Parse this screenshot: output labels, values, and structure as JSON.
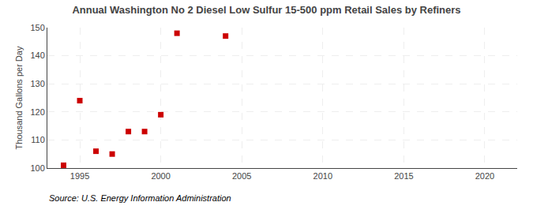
{
  "chart_data": {
    "type": "scatter",
    "title": "Annual Washington No 2 Diesel Low Sulfur 15-500 ppm Retail Sales by Refiners",
    "ylabel": "Thousand Gallons per Day",
    "annotations": [
      "Source: U.S. Energy Information Administration"
    ],
    "x": [
      1994,
      1995,
      1996,
      1997,
      1998,
      1999,
      2000,
      2001,
      2004
    ],
    "values": [
      101,
      124,
      106,
      105,
      113,
      113,
      119,
      148,
      147
    ],
    "color": "#cc0000",
    "marker": "square",
    "xlim": [
      1993,
      2022
    ],
    "ylim": [
      100,
      150
    ],
    "xticks": [
      1995,
      2000,
      2005,
      2010,
      2015,
      2020
    ],
    "yticks": [
      100,
      110,
      120,
      130,
      140,
      150
    ],
    "grid": true
  }
}
